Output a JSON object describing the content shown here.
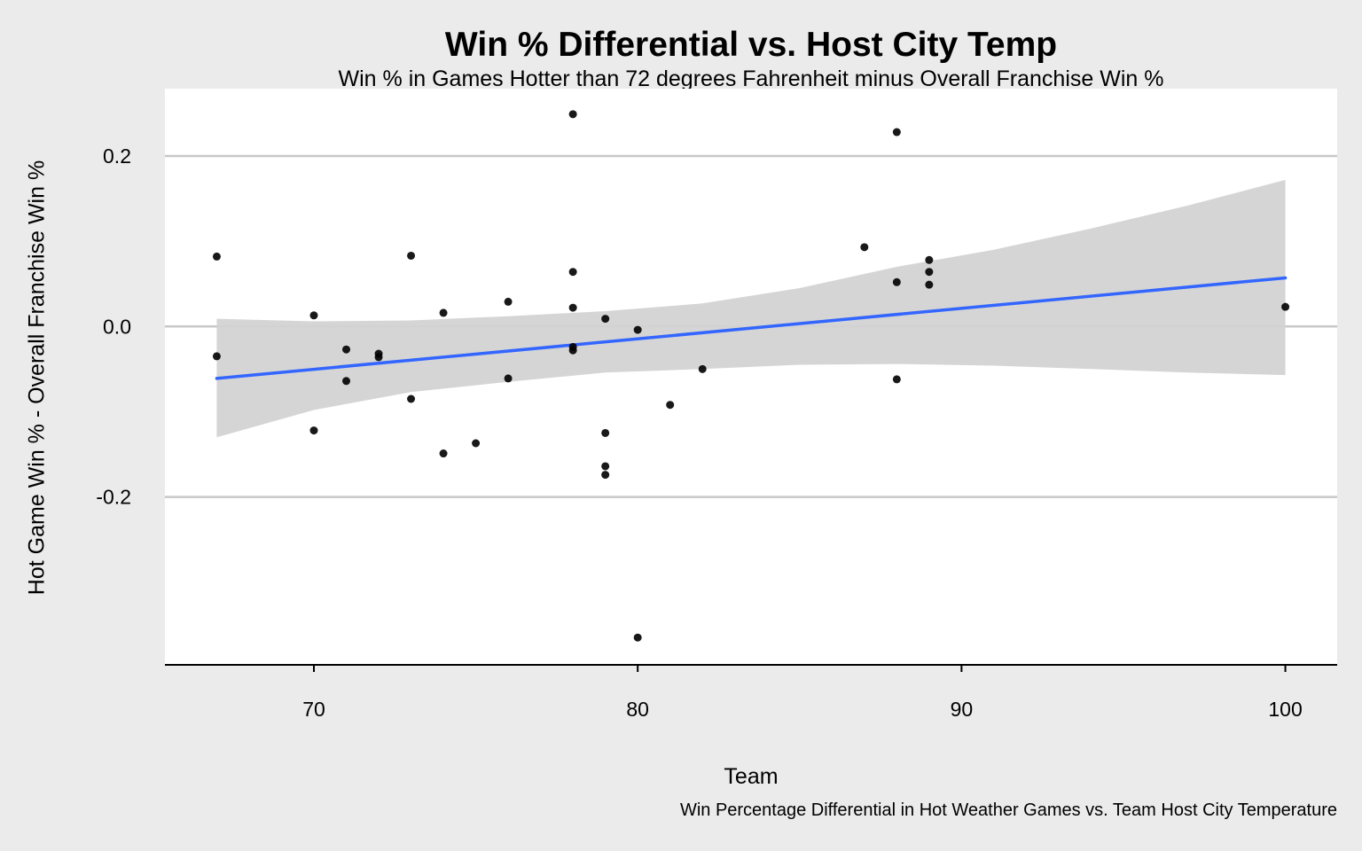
{
  "chart_data": {
    "type": "scatter",
    "title": "Win % Differential vs. Host City Temp",
    "subtitle": "Win % in Games Hotter than 72 degrees Fahrenheit minus Overall Franchise Win %",
    "xlabel": "Team",
    "ylabel": "Hot Game Win % - Overall Franchise Win %",
    "caption": "Win Percentage Differential in Hot Weather Games vs. Team Host City Temperature",
    "xlim": [
      65.4,
      101.6
    ],
    "ylim": [
      -0.397,
      0.279
    ],
    "x_ticks": [
      70,
      80,
      90,
      100
    ],
    "x_tick_labels": [
      "70",
      "80",
      "90",
      "100"
    ],
    "y_ticks": [
      -0.2,
      0.0,
      0.2
    ],
    "y_tick_labels": [
      "-0.2",
      "0.0",
      "0.2"
    ],
    "grid": "horizontal-major",
    "point_color": "#000000",
    "smooth_color": "#3366ff",
    "band_color": "#d3d3d3",
    "gridline_color": "#c8c8c8",
    "points": [
      {
        "x": 67,
        "y": 0.082
      },
      {
        "x": 67,
        "y": -0.035
      },
      {
        "x": 70,
        "y": 0.013
      },
      {
        "x": 70,
        "y": -0.122
      },
      {
        "x": 71,
        "y": -0.027
      },
      {
        "x": 71,
        "y": -0.064
      },
      {
        "x": 72,
        "y": -0.032
      },
      {
        "x": 72,
        "y": -0.036
      },
      {
        "x": 73,
        "y": 0.083
      },
      {
        "x": 73,
        "y": -0.085
      },
      {
        "x": 74,
        "y": 0.016
      },
      {
        "x": 74,
        "y": -0.149
      },
      {
        "x": 75,
        "y": -0.137
      },
      {
        "x": 76,
        "y": 0.029
      },
      {
        "x": 76,
        "y": -0.061
      },
      {
        "x": 78,
        "y": 0.249
      },
      {
        "x": 78,
        "y": 0.064
      },
      {
        "x": 78,
        "y": 0.022
      },
      {
        "x": 78,
        "y": -0.024
      },
      {
        "x": 78,
        "y": -0.028
      },
      {
        "x": 79,
        "y": 0.009
      },
      {
        "x": 79,
        "y": -0.125
      },
      {
        "x": 79,
        "y": -0.164
      },
      {
        "x": 79,
        "y": -0.174
      },
      {
        "x": 80,
        "y": -0.004
      },
      {
        "x": 80,
        "y": -0.365
      },
      {
        "x": 81,
        "y": -0.092
      },
      {
        "x": 82,
        "y": -0.05
      },
      {
        "x": 87,
        "y": 0.093
      },
      {
        "x": 88,
        "y": 0.228
      },
      {
        "x": 88,
        "y": 0.052
      },
      {
        "x": 88,
        "y": -0.062
      },
      {
        "x": 89,
        "y": 0.078
      },
      {
        "x": 89,
        "y": 0.064
      },
      {
        "x": 89,
        "y": 0.049
      },
      {
        "x": 100,
        "y": 0.023
      }
    ],
    "smooth_line": {
      "x": [
        67,
        100
      ],
      "y": [
        -0.061,
        0.057
      ]
    },
    "confidence_band": {
      "x": [
        67,
        70,
        73,
        76,
        79,
        82,
        85,
        88,
        91,
        94,
        97,
        100
      ],
      "lower": [
        -0.13,
        -0.098,
        -0.077,
        -0.065,
        -0.054,
        -0.05,
        -0.045,
        -0.044,
        -0.046,
        -0.05,
        -0.054,
        -0.057
      ],
      "upper": [
        0.009,
        0.006,
        0.007,
        0.012,
        0.018,
        0.027,
        0.045,
        0.07,
        0.09,
        0.115,
        0.142,
        0.172
      ]
    }
  }
}
